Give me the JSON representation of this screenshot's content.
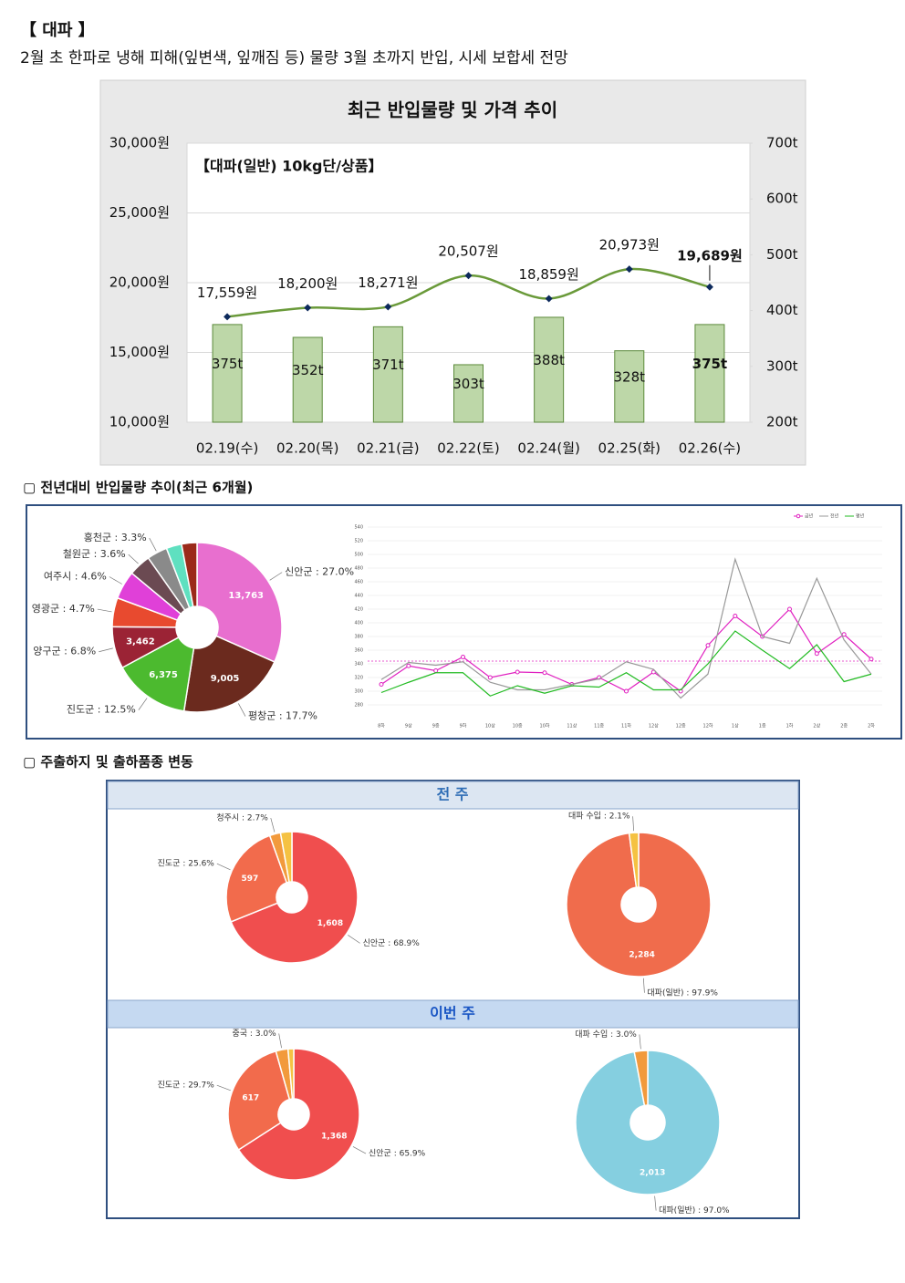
{
  "header": {
    "title": "【 대파 】",
    "subtitle": "2월 초 한파로 냉해 피해(잎변색, 잎깨짐 등) 물량 3월 초까지 반입, 시세 보합세 전망"
  },
  "sections": [
    "▢ 전년대비 반입물량 추이(최근 6개월)",
    "▢ 주출하지 및 출하품종 변동"
  ],
  "panels": [
    "전 주",
    "이번 주"
  ],
  "chart_data": [
    {
      "type": "combo",
      "title": "최근 반입물량 및 가격 추이",
      "subtitle": "【대파(일반) 10kg단/상품】",
      "categories": [
        "02.19(수)",
        "02.20(목)",
        "02.21(금)",
        "02.22(토)",
        "02.24(월)",
        "02.25(화)",
        "02.26(수)"
      ],
      "series": [
        {
          "name": "가격",
          "type": "line",
          "color": "#6a9a3a",
          "marker_color": "#0d2a5c",
          "values": [
            17559,
            18200,
            18271,
            20507,
            18859,
            20973,
            19689
          ],
          "value_labels": [
            "17,559원",
            "18,200원",
            "18,271원",
            "20,507원",
            "18,859원",
            "20,973원",
            "19,689원"
          ]
        },
        {
          "name": "반입물량",
          "type": "bar",
          "axis": "y2",
          "color": "#bdd7a8",
          "values": [
            375,
            352,
            371,
            303,
            388,
            328,
            375
          ],
          "value_labels": [
            "375t",
            "352t",
            "371t",
            "303t",
            "388t",
            "328t",
            "375t"
          ]
        }
      ],
      "highlight_last": true,
      "ylim": [
        10000,
        30000
      ],
      "yticks": [
        {
          "value": 10000,
          "label": "10,000원"
        },
        {
          "value": 15000,
          "label": "15,000원"
        },
        {
          "value": 20000,
          "label": "20,000원"
        },
        {
          "value": 25000,
          "label": "25,000원"
        },
        {
          "value": 30000,
          "label": "30,000원"
        }
      ],
      "y2lim": [
        200,
        700
      ],
      "y2ticks": [
        {
          "value": 200,
          "label": "200t"
        },
        {
          "value": 300,
          "label": "300t"
        },
        {
          "value": 400,
          "label": "400t"
        },
        {
          "value": 500,
          "label": "500t"
        },
        {
          "value": 600,
          "label": "600t"
        },
        {
          "value": 700,
          "label": "700t"
        }
      ],
      "grid": true
    },
    {
      "type": "pie",
      "categories": [
        "신안군",
        "평창군",
        "진도군",
        "양구군",
        "영광군",
        "여주시",
        "철원군",
        "홍천군",
        null,
        null
      ],
      "values": [
        27.0,
        17.7,
        12.5,
        6.8,
        4.7,
        4.6,
        3.6,
        3.3,
        2.5,
        2.5
      ],
      "value_labels": [
        "신안군 : 27.0%",
        "평창군 : 17.7%",
        "진도군 : 12.5%",
        "양구군 : 6.8%",
        "영광군 : 4.7%",
        "여주시 : 4.6%",
        "철원군 : 3.6%",
        "홍천군 : 3.3%",
        null,
        null
      ],
      "counts": [
        13763,
        9005,
        6375,
        3462,
        null,
        null,
        null,
        null,
        null,
        null
      ],
      "count_labels": [
        "13,763",
        "9,005",
        "6,375",
        "3,462",
        null,
        null,
        null,
        null,
        null,
        null
      ],
      "colors": [
        "#e86fcf",
        "#6b2a1e",
        "#4cba2f",
        "#9b2335",
        "#e84a2f",
        "#e040d8",
        "#6b4a52",
        "#8a8a8a",
        "#5fe0c0",
        "#9b2a1a"
      ]
    },
    {
      "type": "line",
      "categories": [
        "8하",
        "9상",
        "9중",
        "9하",
        "10상",
        "10중",
        "10하",
        "11상",
        "11중",
        "11하",
        "12상",
        "12중",
        "12하",
        "1상",
        "1중",
        "1하",
        "2상",
        "2중",
        "2하"
      ],
      "series": [
        {
          "name": "금년",
          "color": "#e020c0",
          "markers": true,
          "values": [
            310,
            337,
            330,
            350,
            320,
            328,
            327,
            310,
            320,
            300,
            328,
            300,
            367,
            410,
            380,
            420,
            355,
            383,
            347
          ]
        },
        {
          "name": "전년",
          "color": "#999999",
          "markers": false,
          "values": [
            317,
            342,
            338,
            343,
            313,
            302,
            302,
            310,
            318,
            343,
            332,
            290,
            325,
            493,
            380,
            370,
            465,
            375,
            325
          ]
        },
        {
          "name": "평년",
          "color": "#22bb22",
          "markers": false,
          "values": [
            298,
            313,
            327,
            327,
            293,
            308,
            297,
            308,
            306,
            327,
            302,
            302,
            340,
            388,
            360,
            333,
            368,
            314,
            325
          ]
        }
      ],
      "mean_line": 344,
      "mean_color": "#e020c0",
      "ylim": [
        280,
        540
      ],
      "yticks": [
        280,
        300,
        320,
        340,
        360,
        380,
        400,
        420,
        440,
        460,
        480,
        500,
        520,
        540
      ],
      "grid": true,
      "legend": "top-right"
    },
    {
      "type": "pie",
      "categories": [
        "신안군",
        "진도군",
        "청주시",
        null
      ],
      "values": [
        68.9,
        25.6,
        2.7,
        2.8
      ],
      "value_labels": [
        "신안군 : 68.9%",
        "진도군 : 25.6%",
        "청주시 : 2.7%",
        null
      ],
      "counts": [
        1608,
        597,
        null,
        null
      ],
      "count_labels": [
        "1,608",
        "597",
        null,
        null
      ],
      "colors": [
        "#f04e4e",
        "#f26b4c",
        "#f29a3c",
        "#f5c242"
      ]
    },
    {
      "type": "pie",
      "categories": [
        "대파(일반)",
        "대파 수입"
      ],
      "values": [
        97.9,
        2.1
      ],
      "value_labels": [
        "대파(일반) : 97.9%",
        "대파 수입 : 2.1%"
      ],
      "counts": [
        2284,
        null
      ],
      "count_labels": [
        "2,284",
        null
      ],
      "colors": [
        "#f06c4c",
        "#f5c242"
      ]
    },
    {
      "type": "pie",
      "categories": [
        "신안군",
        "진도군",
        "중국",
        null
      ],
      "values": [
        65.9,
        29.7,
        3.0,
        1.4
      ],
      "value_labels": [
        "신안군 : 65.9%",
        "진도군 : 29.7%",
        "중국 : 3.0%",
        null
      ],
      "counts": [
        1368,
        617,
        null,
        null
      ],
      "count_labels": [
        "1,368",
        "617",
        null,
        null
      ],
      "colors": [
        "#f04e4e",
        "#f26b4c",
        "#f29a3c",
        "#f5c242"
      ]
    },
    {
      "type": "pie",
      "categories": [
        "대파(일반)",
        "대파 수입"
      ],
      "values": [
        97.0,
        3.0
      ],
      "value_labels": [
        "대파(일반) : 97.0%",
        "대파 수입 : 3.0%"
      ],
      "counts": [
        2013,
        null
      ],
      "count_labels": [
        "2,013",
        null
      ],
      "colors": [
        "#85cfe0",
        "#f29a3c"
      ]
    }
  ]
}
